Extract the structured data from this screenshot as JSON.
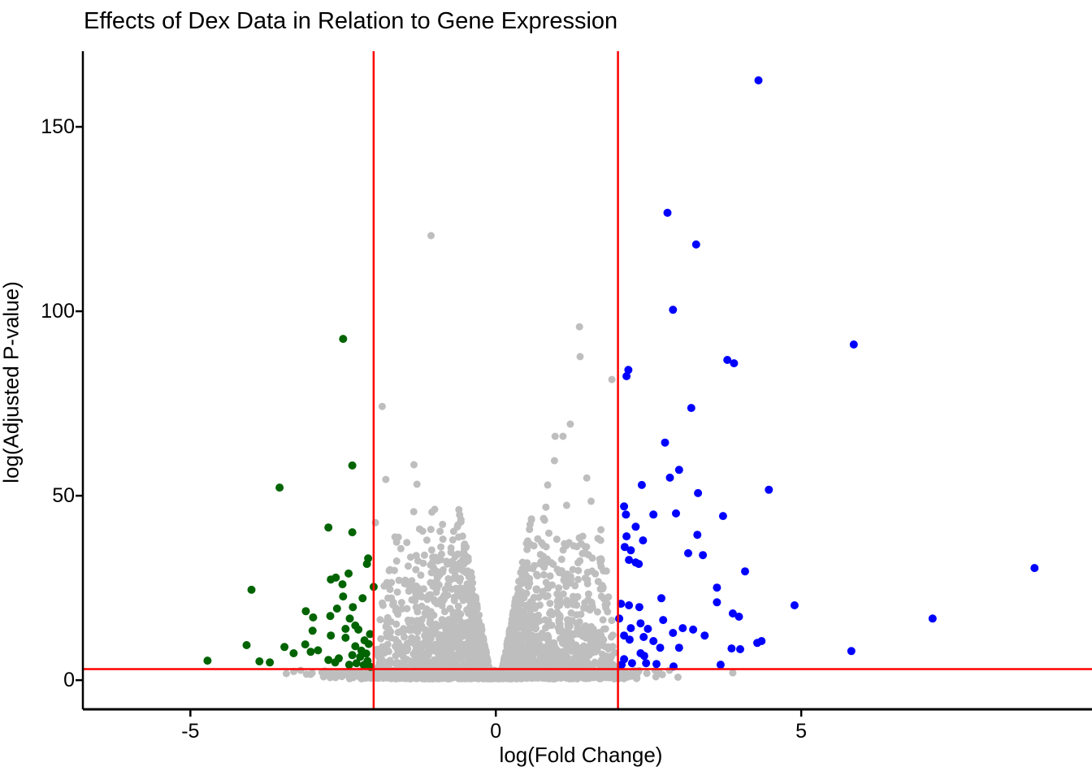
{
  "chart_data": {
    "type": "scatter",
    "title": "Effects of Dex Data in Relation to Gene Expression",
    "xlabel": "log(Fold Change)",
    "ylabel": "log(Adjusted P-value)",
    "grid": false,
    "legend": "none",
    "x_axis": {
      "range": [
        -6.76,
        9.76
      ],
      "ticks": [
        {
          "value": -5,
          "label": "-5"
        },
        {
          "value": 0,
          "label": "0"
        },
        {
          "value": 5,
          "label": "5"
        }
      ]
    },
    "y_axis": {
      "range": [
        -7.9,
        170.5
      ],
      "ticks": [
        {
          "value": 0,
          "label": "0"
        },
        {
          "value": 50,
          "label": "50"
        },
        {
          "value": 100,
          "label": "100"
        },
        {
          "value": 150,
          "label": "150"
        }
      ]
    },
    "thresholds": {
      "vertical_x": [
        -2,
        2
      ],
      "horizontal_y": 3,
      "line_color": "#FF0000",
      "line_width": 2.5
    },
    "colors": {
      "upregulated": "#0000FF",
      "downregulated": "#006400",
      "nonsignificant": "#BEBEBE",
      "axis": "#000000"
    },
    "point_radius": {
      "colored": 5,
      "gray": 4.5
    },
    "series": [
      {
        "name": "upregulated-significant",
        "color_key": "upregulated",
        "points": [
          [
            4.3,
            162.6
          ],
          [
            2.81,
            126.7
          ],
          [
            3.28,
            118.1
          ],
          [
            2.9,
            100.4
          ],
          [
            5.86,
            91.0
          ],
          [
            3.79,
            86.8
          ],
          [
            3.9,
            85.9
          ],
          [
            2.17,
            84.1
          ],
          [
            2.14,
            82.4
          ],
          [
            3.2,
            73.8
          ],
          [
            2.77,
            64.4
          ],
          [
            3.0,
            57.0
          ],
          [
            2.85,
            54.9
          ],
          [
            2.39,
            52.9
          ],
          [
            3.31,
            50.7
          ],
          [
            4.47,
            51.6
          ],
          [
            2.1,
            47.1
          ],
          [
            2.13,
            44.9
          ],
          [
            2.58,
            44.9
          ],
          [
            2.95,
            45.2
          ],
          [
            3.72,
            44.5
          ],
          [
            2.29,
            41.6
          ],
          [
            2.14,
            39.0
          ],
          [
            2.41,
            37.9
          ],
          [
            3.3,
            39.4
          ],
          [
            2.11,
            36.1
          ],
          [
            2.21,
            35.2
          ],
          [
            2.18,
            32.6
          ],
          [
            2.29,
            31.9
          ],
          [
            2.34,
            31.5
          ],
          [
            3.15,
            34.4
          ],
          [
            3.39,
            33.9
          ],
          [
            4.08,
            29.5
          ],
          [
            8.82,
            30.4
          ],
          [
            3.62,
            25.1
          ],
          [
            3.62,
            21.1
          ],
          [
            4.89,
            20.3
          ],
          [
            2.71,
            22.2
          ],
          [
            2.18,
            20.3
          ],
          [
            2.35,
            19.8
          ],
          [
            2.05,
            20.7
          ],
          [
            2.02,
            16.7
          ],
          [
            2.74,
            16.3
          ],
          [
            2.37,
            15.4
          ],
          [
            3.88,
            18.1
          ],
          [
            3.98,
            17.2
          ],
          [
            7.15,
            16.7
          ],
          [
            2.49,
            13.9
          ],
          [
            2.21,
            14.1
          ],
          [
            3.06,
            14.1
          ],
          [
            3.23,
            13.7
          ],
          [
            2.9,
            12.8
          ],
          [
            3.42,
            12.1
          ],
          [
            2.1,
            12.1
          ],
          [
            2.19,
            11.0
          ],
          [
            2.42,
            11.7
          ],
          [
            2.58,
            10.6
          ],
          [
            2.69,
            8.8
          ],
          [
            3.0,
            8.8
          ],
          [
            3.86,
            8.6
          ],
          [
            4.0,
            8.4
          ],
          [
            4.28,
            10.1
          ],
          [
            4.35,
            10.6
          ],
          [
            5.82,
            7.9
          ],
          [
            2.37,
            7.3
          ],
          [
            2.43,
            6.6
          ],
          [
            2.1,
            5.7
          ],
          [
            2.23,
            4.6
          ],
          [
            2.06,
            4.2
          ],
          [
            2.46,
            4.6
          ],
          [
            2.63,
            4.4
          ],
          [
            2.91,
            3.7
          ],
          [
            3.68,
            4.2
          ]
        ]
      },
      {
        "name": "downregulated-significant",
        "color_key": "downregulated",
        "points": [
          [
            -2.5,
            92.5
          ],
          [
            -2.35,
            58.2
          ],
          [
            -3.54,
            52.2
          ],
          [
            -2.74,
            41.4
          ],
          [
            -2.35,
            40.1
          ],
          [
            -2.09,
            33.0
          ],
          [
            -2.11,
            31.5
          ],
          [
            -2.7,
            27.3
          ],
          [
            -2.62,
            27.8
          ],
          [
            -2.51,
            26.0
          ],
          [
            -2.41,
            28.9
          ],
          [
            -2.0,
            25.3
          ],
          [
            -4.0,
            24.5
          ],
          [
            -2.5,
            22.7
          ],
          [
            -2.18,
            22.2
          ],
          [
            -2.34,
            19.8
          ],
          [
            -2.6,
            19.4
          ],
          [
            -3.11,
            18.7
          ],
          [
            -2.99,
            17.0
          ],
          [
            -2.71,
            17.4
          ],
          [
            -2.39,
            16.7
          ],
          [
            -2.3,
            14.8
          ],
          [
            -2.25,
            13.7
          ],
          [
            -2.46,
            13.9
          ],
          [
            -3.0,
            13.4
          ],
          [
            -2.7,
            12.1
          ],
          [
            -2.46,
            11.5
          ],
          [
            -4.08,
            9.5
          ],
          [
            -3.46,
            9.0
          ],
          [
            -3.31,
            7.3
          ],
          [
            -3.12,
            9.7
          ],
          [
            -3.03,
            7.7
          ],
          [
            -2.91,
            8.1
          ],
          [
            -4.72,
            5.3
          ],
          [
            -3.87,
            5.1
          ],
          [
            -3.7,
            4.8
          ],
          [
            -2.74,
            5.5
          ],
          [
            -2.63,
            4.8
          ],
          [
            -2.57,
            5.9
          ],
          [
            -2.3,
            9.2
          ],
          [
            -2.2,
            8.0
          ],
          [
            -2.12,
            7.2
          ],
          [
            -2.22,
            6.3
          ],
          [
            -2.1,
            5.2
          ],
          [
            -2.28,
            4.6
          ],
          [
            -2.16,
            4.1
          ],
          [
            -2.05,
            3.6
          ],
          [
            -2.4,
            4.2
          ],
          [
            -2.35,
            6.8
          ],
          [
            -2.08,
            9.8
          ],
          [
            -2.15,
            10.8
          ],
          [
            -2.06,
            12.5
          ]
        ]
      },
      {
        "name": "nonsignificant-outliers",
        "color_key": "nonsignificant",
        "points": [
          [
            -1.06,
            120.5
          ],
          [
            1.37,
            95.8
          ],
          [
            1.38,
            87.7
          ],
          [
            1.9,
            81.5
          ],
          [
            -1.86,
            74.2
          ],
          [
            1.22,
            69.4
          ],
          [
            0.97,
            66.1
          ],
          [
            1.1,
            66.1
          ],
          [
            0.96,
            59.5
          ],
          [
            -1.34,
            58.4
          ],
          [
            1.49,
            54.8
          ],
          [
            -1.8,
            54.4
          ],
          [
            -1.29,
            53.1
          ],
          [
            0.85,
            52.9
          ],
          [
            1.56,
            48.5
          ],
          [
            -1.0,
            46.3
          ],
          [
            0.82,
            46.9
          ],
          [
            1.16,
            47.4
          ],
          [
            -1.97,
            42.7
          ],
          [
            3.88,
            2.0
          ],
          [
            -3.43,
            1.8
          ],
          [
            -2.82,
            0.9
          ],
          [
            2.62,
            0.9
          ]
        ]
      }
    ],
    "nonsignificant_cloud": {
      "description": "dense gray background cloud generated deterministically",
      "seed": 1337,
      "bottom_strip": {
        "count": 1050,
        "x_max": 3.45,
        "y_min": 0.35,
        "y_max": 2.7
      },
      "wings": {
        "count": 1500,
        "y_min": 3.2,
        "y_span": 45,
        "inner_base": 0.07,
        "inner_slope": 0.0115,
        "outer_base": 2.0,
        "outer_slope": 0.006,
        "skew": 1.7
      }
    }
  }
}
